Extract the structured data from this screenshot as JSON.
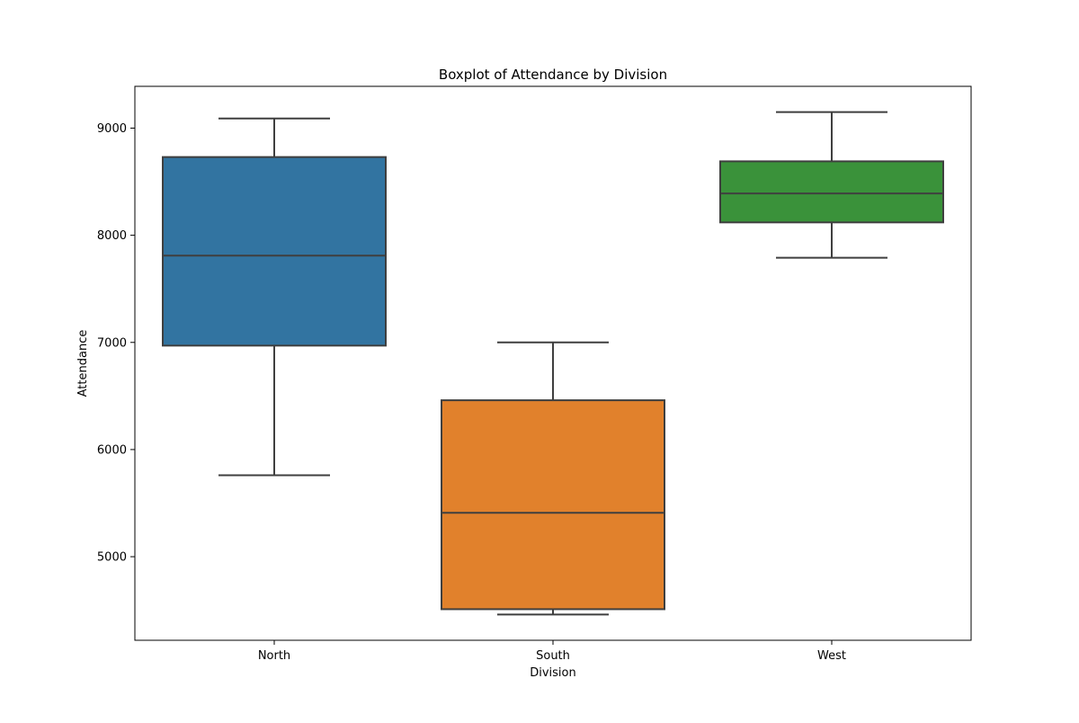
{
  "chart_data": {
    "type": "box",
    "title": "Boxplot of Attendance by Division",
    "xlabel": "Division",
    "ylabel": "Attendance",
    "ylim": [
      4220,
      9390
    ],
    "yticks": [
      5000,
      6000,
      7000,
      8000,
      9000
    ],
    "grid": false,
    "categories": [
      "North",
      "South",
      "West"
    ],
    "colors": [
      "#3274a1",
      "#e1812c",
      "#3a923a"
    ],
    "boxes": [
      {
        "category": "North",
        "whisker_low": 5760,
        "q1": 6970,
        "median": 7810,
        "q3": 8730,
        "whisker_high": 9090
      },
      {
        "category": "South",
        "whisker_low": 4460,
        "q1": 4510,
        "median": 5410,
        "q3": 6460,
        "whisker_high": 7000
      },
      {
        "category": "West",
        "whisker_low": 7790,
        "q1": 8120,
        "median": 8390,
        "q3": 8690,
        "whisker_high": 9150
      }
    ]
  }
}
